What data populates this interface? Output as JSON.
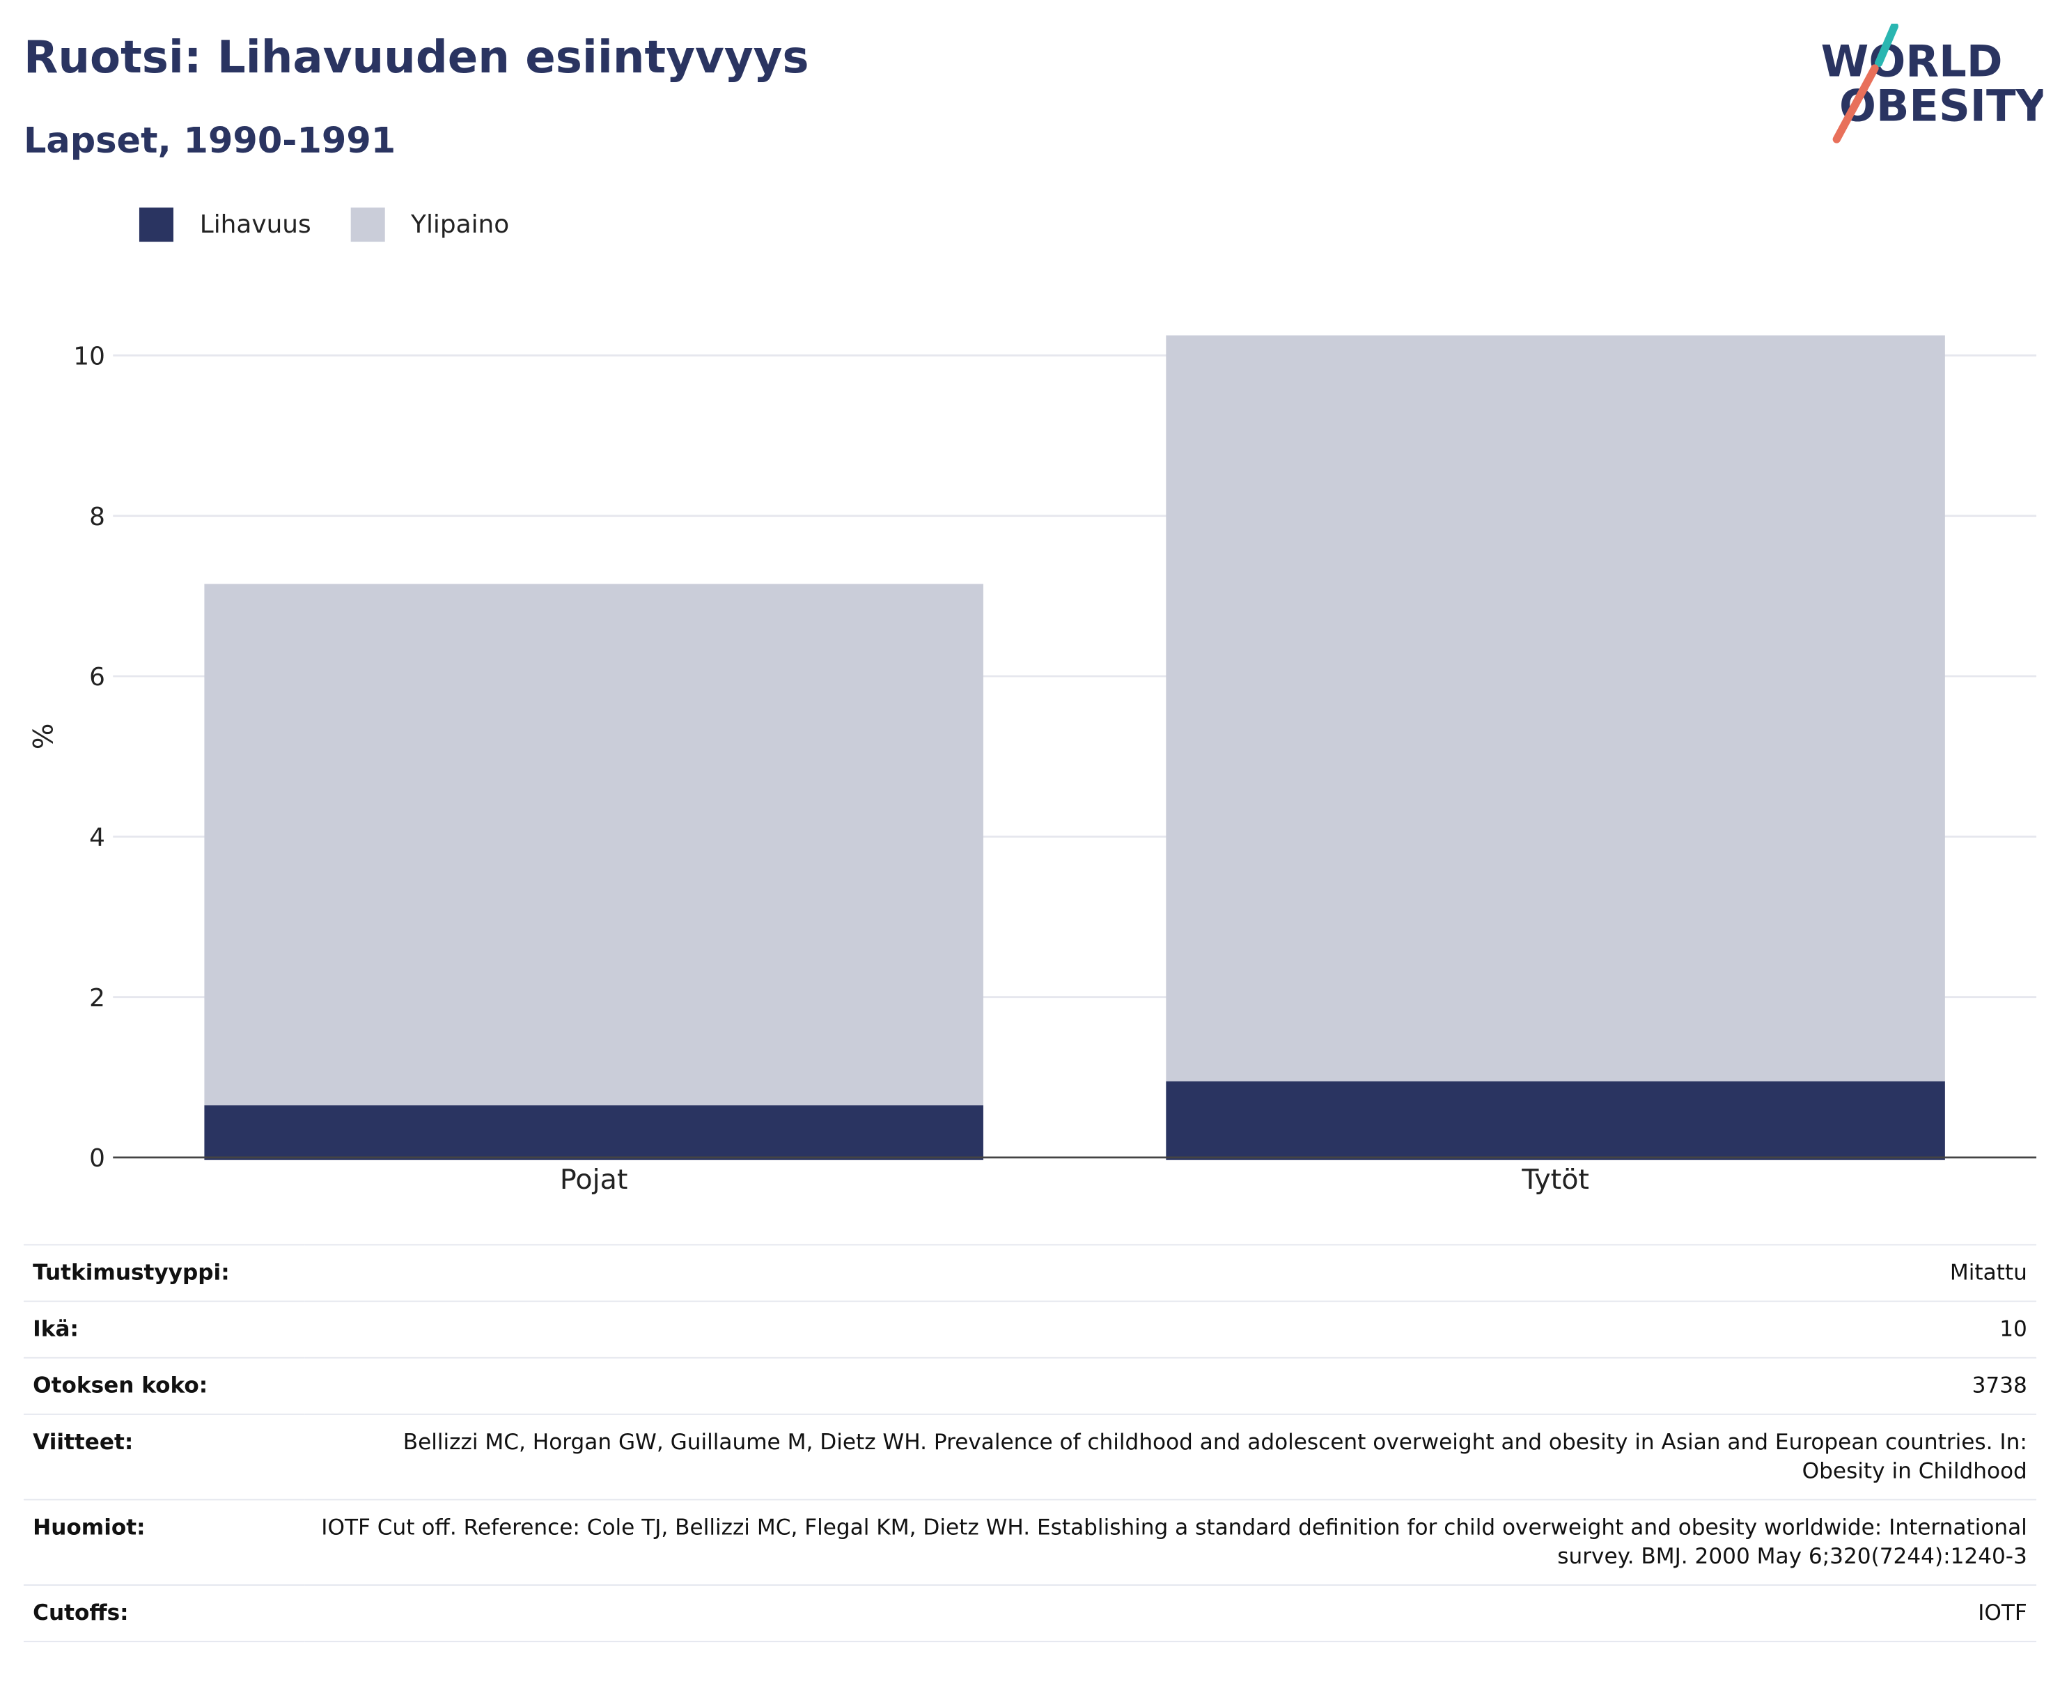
{
  "header": {
    "title": "Ruotsi: Lihavuuden esiintyvyys",
    "subtitle": "Lapset, 1990-1991"
  },
  "logo": {
    "line1": "WORLD",
    "line2": "OBESITY"
  },
  "colors": {
    "obesity": "#2a3461",
    "overweight": "#cacdd9",
    "title": "#2a3461",
    "logo_teal": "#2ab6b1",
    "logo_coral": "#e8705a"
  },
  "chart_data": {
    "type": "bar",
    "stacked": true,
    "categories": [
      "Pojat",
      "Tytöt"
    ],
    "series": [
      {
        "name": "Lihavuus",
        "values": [
          0.65,
          0.95
        ]
      },
      {
        "name": "Ylipaino",
        "values": [
          6.5,
          9.3
        ]
      }
    ],
    "ylabel": "%",
    "ylim": [
      0,
      10.5
    ],
    "yticks": [
      0,
      2,
      4,
      6,
      8,
      10
    ],
    "grid": true,
    "legend_position": "top-left"
  },
  "info": [
    {
      "key": "Tutkimustyyppi:",
      "value": "Mitattu"
    },
    {
      "key": "Ikä:",
      "value": "10"
    },
    {
      "key": "Otoksen koko:",
      "value": "3738"
    },
    {
      "key": "Viitteet:",
      "value": "Bellizzi MC, Horgan GW, Guillaume M, Dietz WH. Prevalence of childhood and adolescent overweight and obesity in Asian and European countries. In: Obesity in Childhood"
    },
    {
      "key": "Huomiot:",
      "value": "IOTF Cut off. Reference: Cole TJ, Bellizzi MC, Flegal KM, Dietz WH. Establishing a standard definition for child overweight and obesity worldwide: International survey. BMJ. 2000 May 6;320(7244):1240-3"
    },
    {
      "key": "Cutoffs:",
      "value": "IOTF"
    }
  ]
}
